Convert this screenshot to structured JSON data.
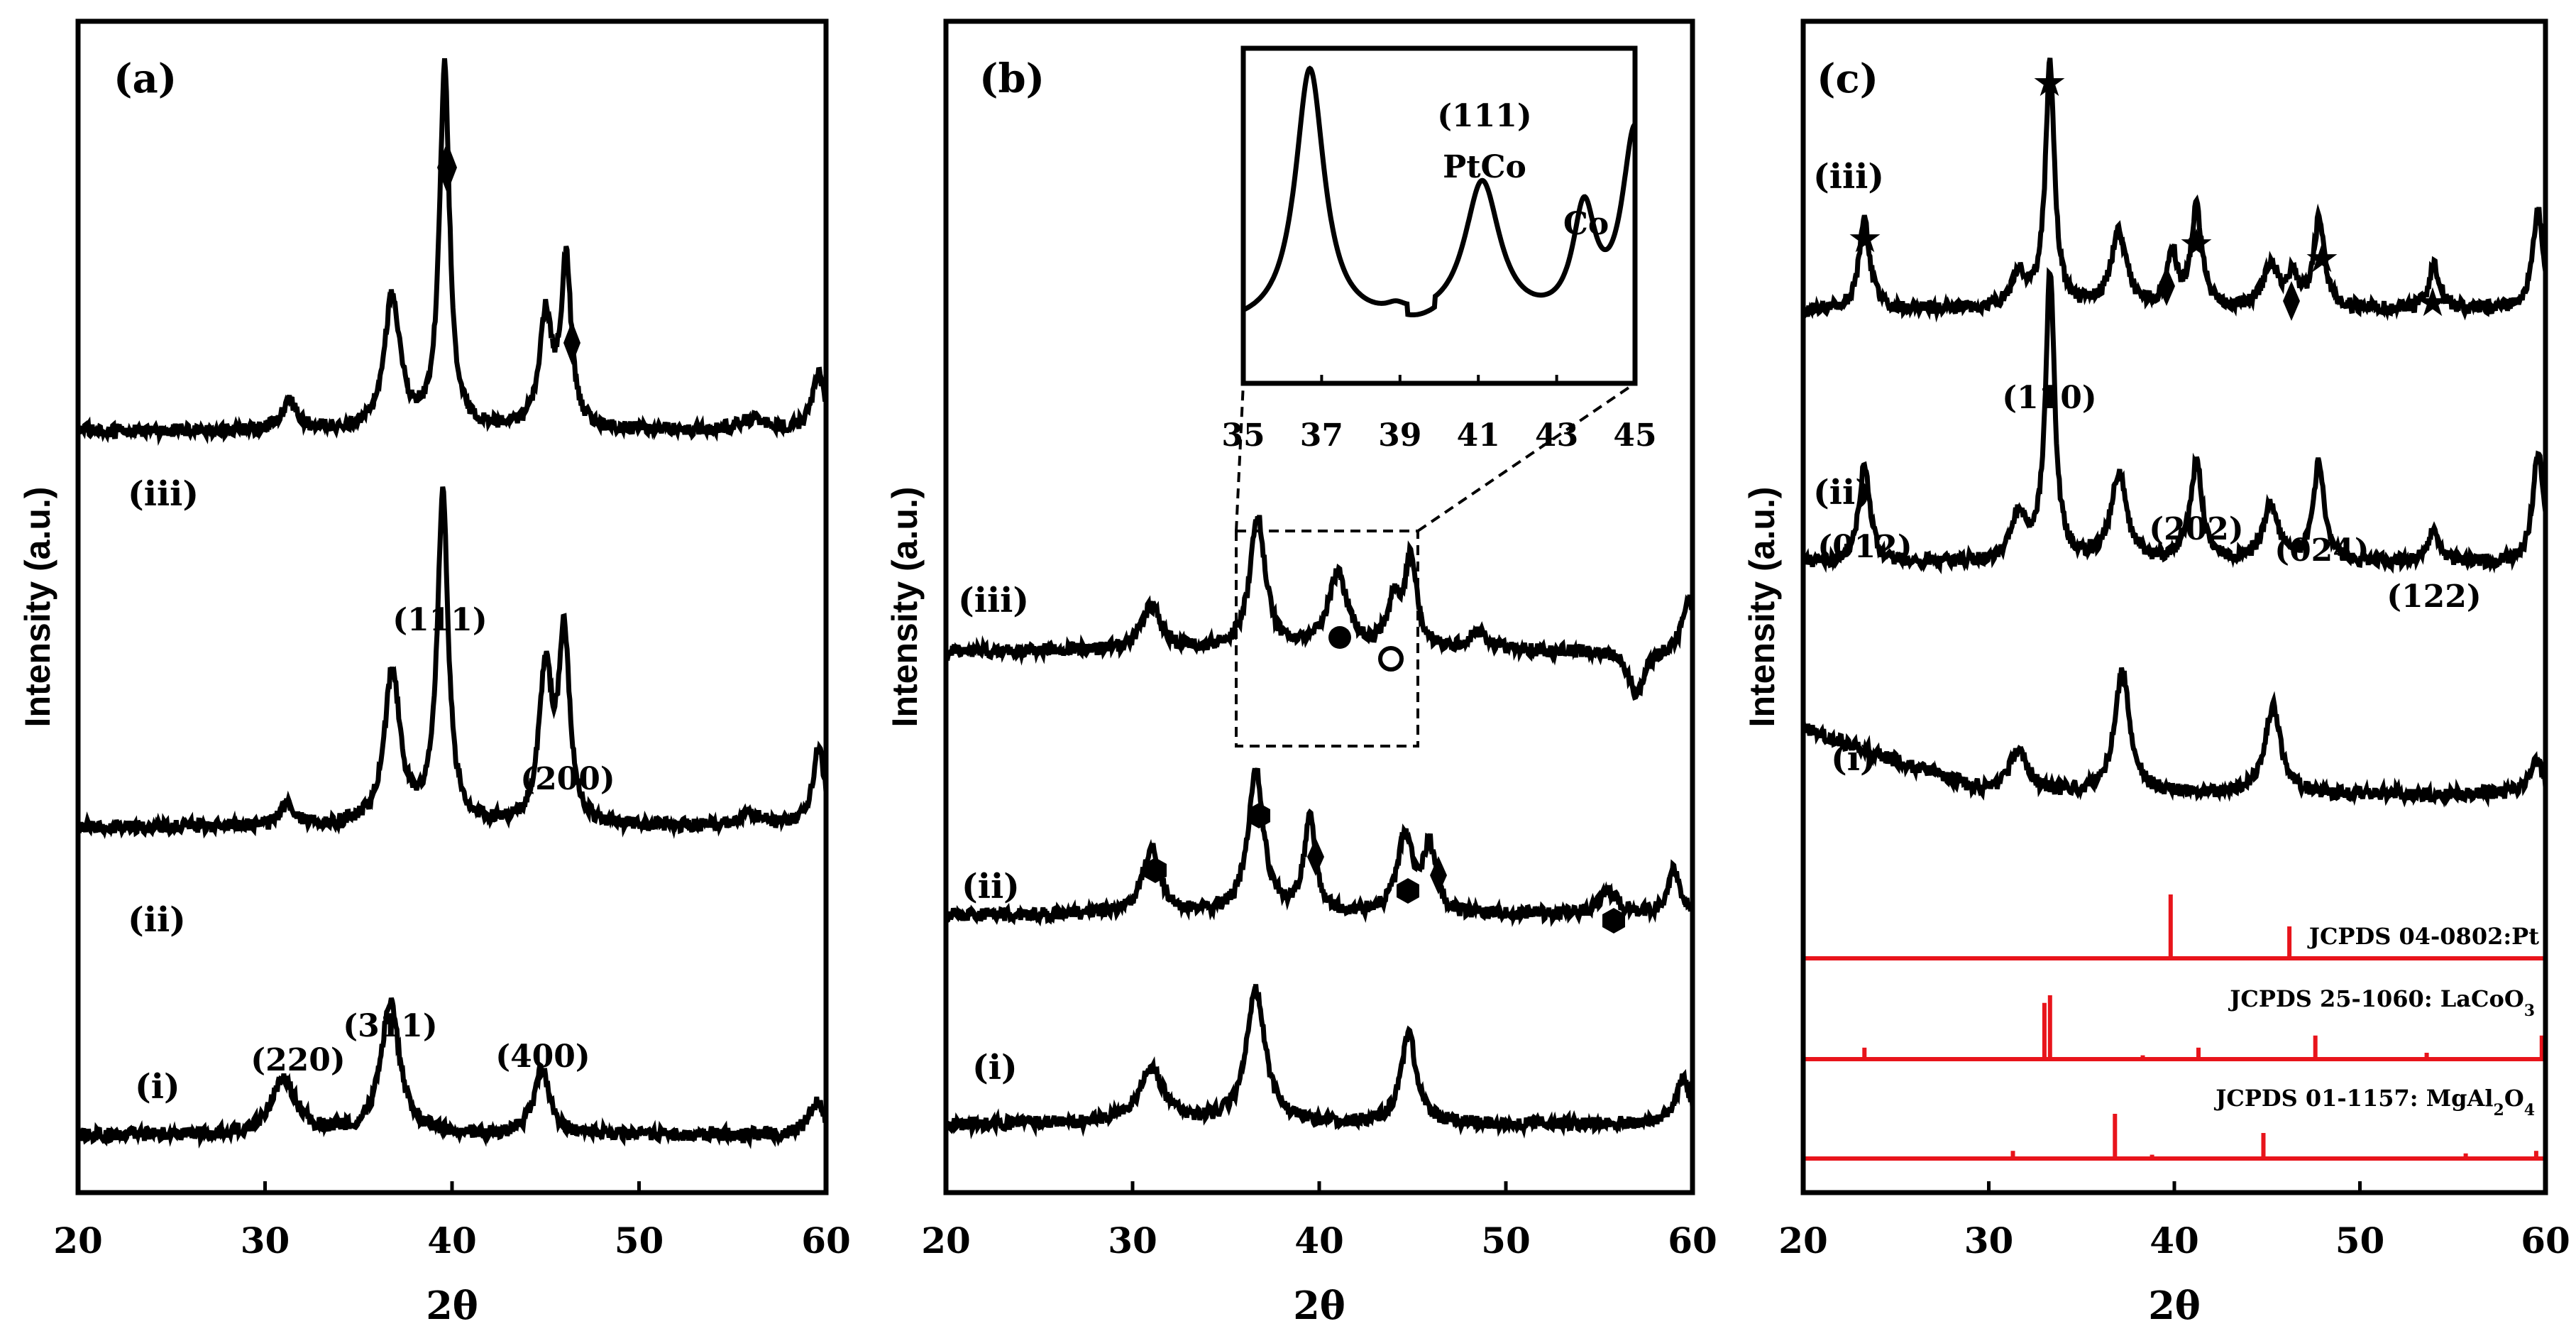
{
  "colors": {
    "trace": "#000000",
    "reference": "#e8141b",
    "background": "#ffffff"
  },
  "chart_data": [
    {
      "type": "line",
      "panel_label": "(a)",
      "xlabel": "2θ",
      "ylabel": "Intensity (a.u.)",
      "xlim": [
        20,
        60
      ],
      "xticks": [
        "20",
        "30",
        "40",
        "50",
        "60"
      ],
      "series": [
        {
          "name": "(i)",
          "baseline": 0.02,
          "peaks": [
            [
              31.0,
              0.05,
              0.8
            ],
            [
              36.7,
              0.12,
              0.6
            ],
            [
              44.8,
              0.06,
              0.5
            ],
            [
              59.5,
              0.03,
              0.5
            ]
          ]
        },
        {
          "name": "(ii)",
          "baseline": 0.3,
          "peaks": [
            [
              31.2,
              0.02,
              0.5
            ],
            [
              36.8,
              0.14,
              0.5
            ],
            [
              39.5,
              0.3,
              0.35
            ],
            [
              45.0,
              0.14,
              0.4
            ],
            [
              46.0,
              0.17,
              0.35
            ],
            [
              56.0,
              0.01,
              0.8
            ],
            [
              59.6,
              0.07,
              0.4
            ]
          ]
        },
        {
          "name": "(iii)",
          "baseline": 0.66,
          "peaks": [
            [
              31.3,
              0.025,
              0.5
            ],
            [
              36.8,
              0.12,
              0.5
            ],
            [
              39.6,
              0.33,
              0.32
            ],
            [
              45.0,
              0.1,
              0.4
            ],
            [
              46.1,
              0.15,
              0.33
            ],
            [
              56.0,
              0.01,
              0.8
            ],
            [
              59.6,
              0.05,
              0.4
            ]
          ]
        }
      ],
      "annotations": [
        "(111)",
        "(200)",
        "(220)",
        "(311)",
        "(400)"
      ]
    },
    {
      "type": "line",
      "panel_label": "(b)",
      "xlabel": "2θ",
      "ylabel": "Intensity (a.u.)",
      "xlim": [
        20,
        60
      ],
      "xticks": [
        "20",
        "30",
        "40",
        "50",
        "60"
      ],
      "series": [
        {
          "name": "(i)",
          "baseline": 0.03,
          "peaks": [
            [
              31.0,
              0.05,
              0.8
            ],
            [
              36.6,
              0.12,
              0.6
            ],
            [
              44.8,
              0.08,
              0.5
            ],
            [
              59.5,
              0.04,
              0.5
            ]
          ]
        },
        {
          "name": "(ii)",
          "baseline": 0.22,
          "peaks": [
            [
              31.0,
              0.06,
              0.6
            ],
            [
              36.6,
              0.13,
              0.5
            ],
            [
              39.5,
              0.09,
              0.35
            ],
            [
              44.6,
              0.07,
              0.5
            ],
            [
              45.9,
              0.06,
              0.4
            ],
            [
              55.5,
              0.02,
              0.6
            ],
            [
              59.0,
              0.04,
              0.4
            ]
          ]
        },
        {
          "name": "(iii)",
          "baseline": 0.46,
          "peaks": [
            [
              31.0,
              0.04,
              0.6
            ],
            [
              36.7,
              0.12,
              0.5
            ],
            [
              41.0,
              0.07,
              0.6
            ],
            [
              44.0,
              0.04,
              0.4
            ],
            [
              44.9,
              0.08,
              0.4
            ],
            [
              48.5,
              0.015,
              0.6
            ],
            [
              57.0,
              -0.04,
              0.5
            ],
            [
              59.8,
              0.05,
              0.4
            ]
          ]
        }
      ],
      "inset": {
        "xlim": [
          35,
          45
        ],
        "xticks": [
          "35",
          "37",
          "39",
          "41",
          "43",
          "45"
        ],
        "labels": [
          "(111)",
          "PtCo",
          "Co"
        ]
      }
    },
    {
      "type": "line",
      "panel_label": "(c)",
      "xlabel": "2θ",
      "ylabel": "Intensity (a.u.)",
      "xlim": [
        20,
        60
      ],
      "xticks": [
        "20",
        "30",
        "40",
        "50",
        "60"
      ],
      "series": [
        {
          "name": "(i)",
          "baseline": 0.33,
          "peaks": [
            [
              31.6,
              0.04,
              0.6
            ],
            [
              37.2,
              0.11,
              0.5
            ],
            [
              45.3,
              0.08,
              0.5
            ],
            [
              59.5,
              0.03,
              0.4
            ]
          ]
        },
        {
          "name": "(ii)",
          "baseline": 0.54,
          "peaks": [
            [
              23.3,
              0.09,
              0.35
            ],
            [
              31.6,
              0.04,
              0.5
            ],
            [
              33.3,
              0.26,
              0.3
            ],
            [
              37.0,
              0.08,
              0.5
            ],
            [
              40.5,
              0.01,
              0.3
            ],
            [
              41.2,
              0.09,
              0.35
            ],
            [
              45.2,
              0.05,
              0.5
            ],
            [
              47.8,
              0.09,
              0.35
            ],
            [
              54.0,
              0.03,
              0.35
            ],
            [
              59.6,
              0.1,
              0.35
            ]
          ]
        },
        {
          "name": "(iii)",
          "baseline": 0.77,
          "peaks": [
            [
              23.3,
              0.08,
              0.35
            ],
            [
              31.6,
              0.03,
              0.5
            ],
            [
              33.3,
              0.22,
              0.3
            ],
            [
              37.0,
              0.07,
              0.5
            ],
            [
              39.9,
              0.05,
              0.3
            ],
            [
              41.2,
              0.09,
              0.35
            ],
            [
              45.2,
              0.04,
              0.5
            ],
            [
              46.4,
              0.03,
              0.3
            ],
            [
              47.8,
              0.08,
              0.35
            ],
            [
              54.0,
              0.04,
              0.35
            ],
            [
              59.6,
              0.09,
              0.35
            ]
          ]
        }
      ],
      "annotations": [
        "(012)",
        "(110)",
        "(202)",
        "(024)",
        "(122)"
      ],
      "references": [
        {
          "label": "JCPDS 04-0802:Pt",
          "lines": [
            [
              39.8,
              1.0
            ],
            [
              46.2,
              0.5
            ]
          ]
        },
        {
          "label": "JCPDS 25-1060: LaCoO",
          "sub": "3",
          "lines": [
            [
              23.3,
              0.18
            ],
            [
              33.0,
              0.88
            ],
            [
              33.3,
              1.0
            ],
            [
              38.3,
              0.06
            ],
            [
              41.3,
              0.18
            ],
            [
              47.6,
              0.37
            ],
            [
              53.6,
              0.1
            ],
            [
              59.8,
              0.37
            ]
          ]
        },
        {
          "label": "JCPDS 01-1157: MgAl",
          "sub": "2",
          "label_tail": "O",
          "sub2": "4",
          "lines": [
            [
              31.3,
              0.12
            ],
            [
              36.8,
              0.7
            ],
            [
              38.8,
              0.06
            ],
            [
              44.8,
              0.4
            ],
            [
              55.7,
              0.08
            ],
            [
              59.5,
              0.12
            ]
          ]
        }
      ]
    }
  ]
}
